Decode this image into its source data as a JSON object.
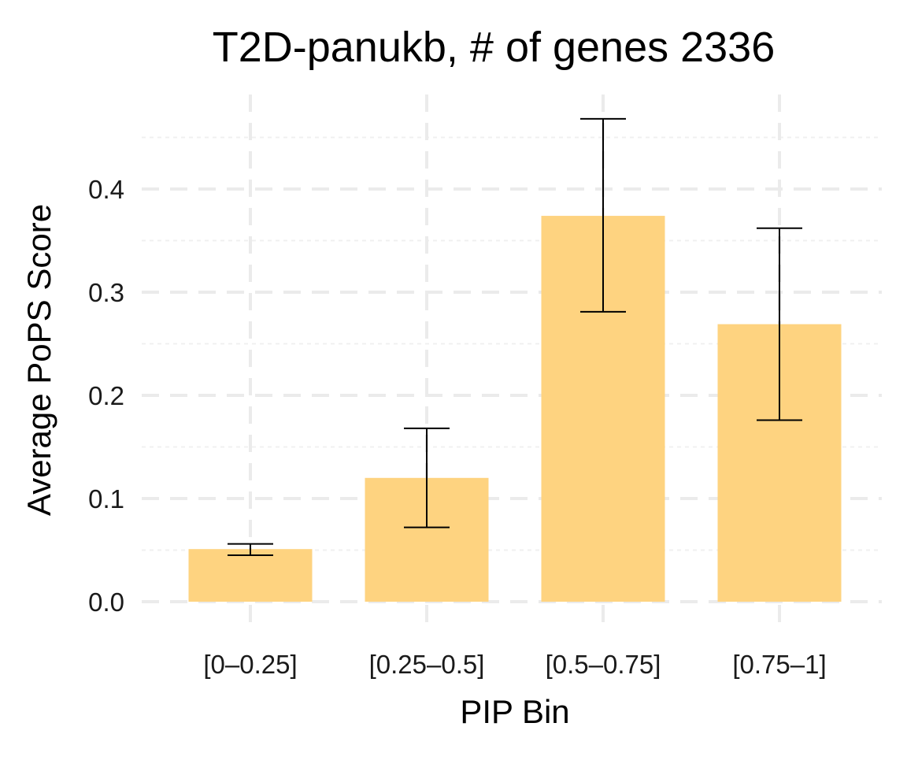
{
  "chart_data": {
    "type": "bar",
    "title": "T2D-panukb, # of genes 2336",
    "xlabel": "PIP Bin",
    "ylabel": "Average PoPS Score",
    "categories": [
      "[0–0.25]",
      "[0.25–0.5]",
      "[0.5–0.75]",
      "[0.75–1]"
    ],
    "values": [
      0.051,
      0.12,
      0.374,
      0.269
    ],
    "error_low": [
      0.045,
      0.072,
      0.281,
      0.176
    ],
    "error_high": [
      0.056,
      0.168,
      0.468,
      0.362
    ],
    "yticks": [
      0.0,
      0.1,
      0.2,
      0.3,
      0.4
    ],
    "ytick_labels": [
      "0.0",
      "0.1",
      "0.2",
      "0.3",
      "0.4"
    ],
    "ylim": [
      -0.02,
      0.48
    ],
    "grid": true,
    "bar_color": "#FED380",
    "error_color": "#000000",
    "legend": "none"
  }
}
